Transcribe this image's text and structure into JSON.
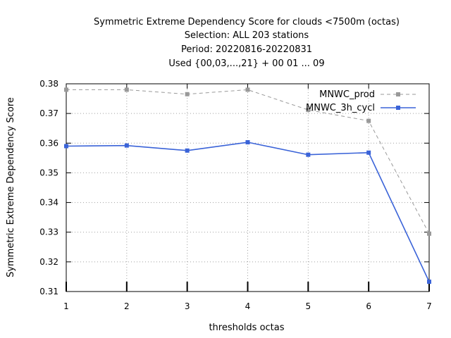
{
  "chart_data": {
    "type": "line",
    "title_lines": [
      "Symmetric Extreme Dependency Score  for clouds <7500m (octas)",
      "Selection: ALL    203 stations",
      "Period: 20220816-20220831",
      "Used {00,03,...,21} + 00 01 ... 09"
    ],
    "xlabel": "thresholds octas",
    "ylabel": "Symmetric Extreme Dependency Score",
    "x": [
      1,
      2,
      3,
      4,
      5,
      6,
      7
    ],
    "x_ticks": [
      "1",
      "2",
      "3",
      "4",
      "5",
      "6",
      "7"
    ],
    "y_ticks": [
      "0.31",
      "0.32",
      "0.33",
      "0.34",
      "0.35",
      "0.36",
      "0.37",
      "0.38"
    ],
    "xlim": [
      1,
      7
    ],
    "ylim": [
      0.31,
      0.38
    ],
    "grid": true,
    "legend_position": "top-right",
    "series": [
      {
        "name": "MNWC_prod",
        "values": [
          0.378,
          0.378,
          0.3765,
          0.378,
          0.3712,
          0.3675,
          0.3295
        ],
        "color": "#999999",
        "dashed": true
      },
      {
        "name": "MNWC_3h_cycl",
        "values": [
          0.359,
          0.3592,
          0.3575,
          0.3603,
          0.3561,
          0.3568,
          0.3133
        ],
        "color": "#3a63d8",
        "dashed": false
      }
    ]
  }
}
